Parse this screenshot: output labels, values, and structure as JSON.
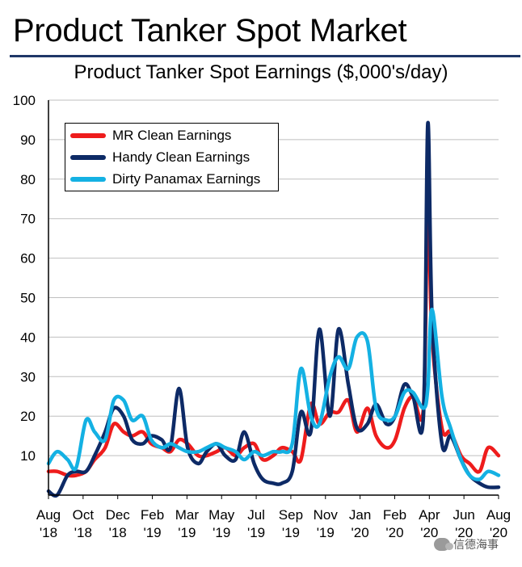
{
  "page_title": "Product Tanker Spot Market",
  "watermark": "信德海事",
  "colors": {
    "title_rule": "#1f3768",
    "mr": "#ee1c1c",
    "handy": "#0d2a66",
    "dirty": "#14b1e3",
    "grid": "#bfbfbf"
  },
  "chart_data": {
    "type": "line",
    "title": "Product Tanker Spot Earnings ($,000's/day)",
    "xlabel": "",
    "ylabel": "",
    "ylim": [
      0,
      100
    ],
    "yticks": [
      10,
      20,
      30,
      40,
      50,
      60,
      70,
      80,
      90,
      100
    ],
    "xlim": [
      "2018-08",
      "2020-08"
    ],
    "x_tick_labels": [
      {
        "month": "Aug",
        "year": "'18"
      },
      {
        "month": "Oct",
        "year": "'18"
      },
      {
        "month": "Dec",
        "year": "'18"
      },
      {
        "month": "Feb",
        "year": "'19"
      },
      {
        "month": "Mar",
        "year": "'19"
      },
      {
        "month": "May",
        "year": "'19"
      },
      {
        "month": "Jul",
        "year": "'19"
      },
      {
        "month": "Sep",
        "year": "'19"
      },
      {
        "month": "Nov",
        "year": "'19"
      },
      {
        "month": "Jan",
        "year": "'20"
      },
      {
        "month": "Feb",
        "year": "'20"
      },
      {
        "month": "Apr",
        "year": "'20"
      },
      {
        "month": "Jun",
        "year": "'20"
      },
      {
        "month": "Aug",
        "year": "'20"
      }
    ],
    "grid": true,
    "legend_position": "top-left",
    "x": [
      "2018-08-01",
      "2018-08-15",
      "2018-09-01",
      "2018-09-15",
      "2018-10-01",
      "2018-10-15",
      "2018-11-01",
      "2018-11-15",
      "2018-12-01",
      "2018-12-15",
      "2019-01-01",
      "2019-01-15",
      "2019-02-01",
      "2019-02-15",
      "2019-03-01",
      "2019-03-15",
      "2019-04-01",
      "2019-04-15",
      "2019-05-01",
      "2019-05-15",
      "2019-06-01",
      "2019-06-15",
      "2019-07-01",
      "2019-07-15",
      "2019-08-01",
      "2019-08-15",
      "2019-09-01",
      "2019-09-15",
      "2019-10-01",
      "2019-10-15",
      "2019-11-01",
      "2019-11-15",
      "2019-12-01",
      "2019-12-15",
      "2020-01-01",
      "2020-01-15",
      "2020-02-01",
      "2020-02-15",
      "2020-03-01",
      "2020-03-15",
      "2020-04-01",
      "2020-04-08",
      "2020-04-15",
      "2020-05-01",
      "2020-05-15",
      "2020-06-01",
      "2020-06-15",
      "2020-07-01",
      "2020-07-15",
      "2020-08-01"
    ],
    "series": [
      {
        "name": "MR Clean Earnings",
        "color": "#ee1c1c",
        "values": [
          6,
          6,
          5,
          5,
          6,
          9,
          12,
          18,
          16,
          15,
          16,
          13,
          12,
          11,
          14,
          13,
          10,
          10,
          11,
          12,
          10,
          12,
          13,
          9,
          10,
          12,
          11,
          9,
          23,
          18,
          21,
          21,
          24,
          16,
          22,
          15,
          12,
          14,
          22,
          25,
          22,
          74,
          40,
          17,
          16,
          10,
          8,
          6,
          12,
          10
        ]
      },
      {
        "name": "Handy Clean Earnings",
        "color": "#0d2a66",
        "values": [
          1,
          0,
          5,
          6,
          6,
          10,
          16,
          22,
          20,
          14,
          13,
          15,
          14,
          12,
          27,
          12,
          8,
          11,
          13,
          10,
          9,
          16,
          8,
          4,
          3,
          3,
          6,
          21,
          16,
          42,
          20,
          42,
          28,
          17,
          18,
          23,
          18,
          20,
          28,
          25,
          20,
          94,
          45,
          13,
          15,
          9,
          5,
          3,
          2,
          2
        ]
      },
      {
        "name": "Dirty Panamax Earnings",
        "color": "#14b1e3",
        "values": [
          8,
          11,
          9,
          7,
          19,
          16,
          14,
          24,
          24,
          19,
          20,
          14,
          12,
          13,
          12,
          11,
          11,
          12,
          13,
          12,
          11,
          9,
          11,
          10,
          11,
          11,
          13,
          32,
          20,
          18,
          30,
          35,
          32,
          40,
          39,
          22,
          19,
          20,
          26,
          26,
          22,
          27,
          47,
          25,
          17,
          9,
          5,
          4,
          6,
          5
        ]
      }
    ]
  }
}
